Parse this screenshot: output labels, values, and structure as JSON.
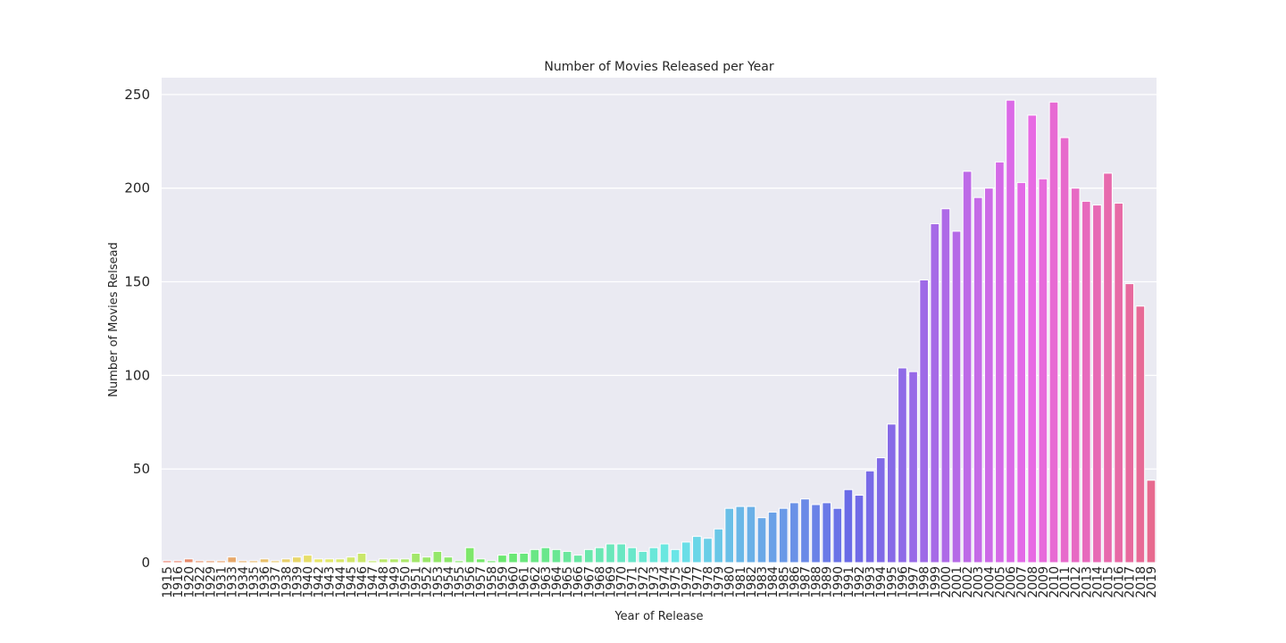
{
  "chart_data": {
    "type": "bar",
    "title": "Number of Movies Released per Year",
    "x_label": "Year of Release",
    "y_label": "Number of Movies Relsead",
    "categories": [
      "1915",
      "1916",
      "1920",
      "1922",
      "1929",
      "1931",
      "1933",
      "1934",
      "1935",
      "1936",
      "1937",
      "1938",
      "1939",
      "1940",
      "1942",
      "1943",
      "1944",
      "1945",
      "1946",
      "1947",
      "1948",
      "1949",
      "1950",
      "1951",
      "1952",
      "1953",
      "1954",
      "1955",
      "1956",
      "1957",
      "1958",
      "1959",
      "1960",
      "1961",
      "1962",
      "1963",
      "1964",
      "1965",
      "1966",
      "1967",
      "1968",
      "1969",
      "1970",
      "1971",
      "1972",
      "1973",
      "1974",
      "1975",
      "1976",
      "1977",
      "1978",
      "1979",
      "1980",
      "1981",
      "1982",
      "1983",
      "1984",
      "1985",
      "1986",
      "1987",
      "1988",
      "1989",
      "1990",
      "1991",
      "1992",
      "1993",
      "1994",
      "1995",
      "1996",
      "1997",
      "1998",
      "1999",
      "2000",
      "2001",
      "2002",
      "2003",
      "2004",
      "2005",
      "2006",
      "2007",
      "2008",
      "2009",
      "2010",
      "2011",
      "2012",
      "2013",
      "2014",
      "2015",
      "2016",
      "2017",
      "2018",
      "2019"
    ],
    "values": [
      1,
      1,
      2,
      1,
      1,
      1,
      3,
      1,
      1,
      2,
      1,
      2,
      3,
      4,
      2,
      2,
      2,
      3,
      5,
      1,
      2,
      2,
      2,
      5,
      3,
      6,
      3,
      1,
      8,
      2,
      1,
      4,
      5,
      5,
      7,
      8,
      7,
      6,
      4,
      7,
      8,
      10,
      10,
      8,
      6,
      8,
      10,
      7,
      11,
      14,
      13,
      18,
      29,
      30,
      30,
      24,
      27,
      29,
      32,
      34,
      31,
      32,
      29,
      39,
      36,
      49,
      56,
      74,
      104,
      102,
      151,
      181,
      189,
      177,
      209,
      195,
      200,
      214,
      247,
      203,
      239,
      205,
      246,
      227,
      200,
      193,
      191,
      208,
      192,
      149,
      137,
      44
    ],
    "palette": "husl",
    "ylim": [
      0,
      259
    ],
    "yticks": [
      0,
      50,
      100,
      150,
      200,
      250
    ],
    "grid": true
  }
}
